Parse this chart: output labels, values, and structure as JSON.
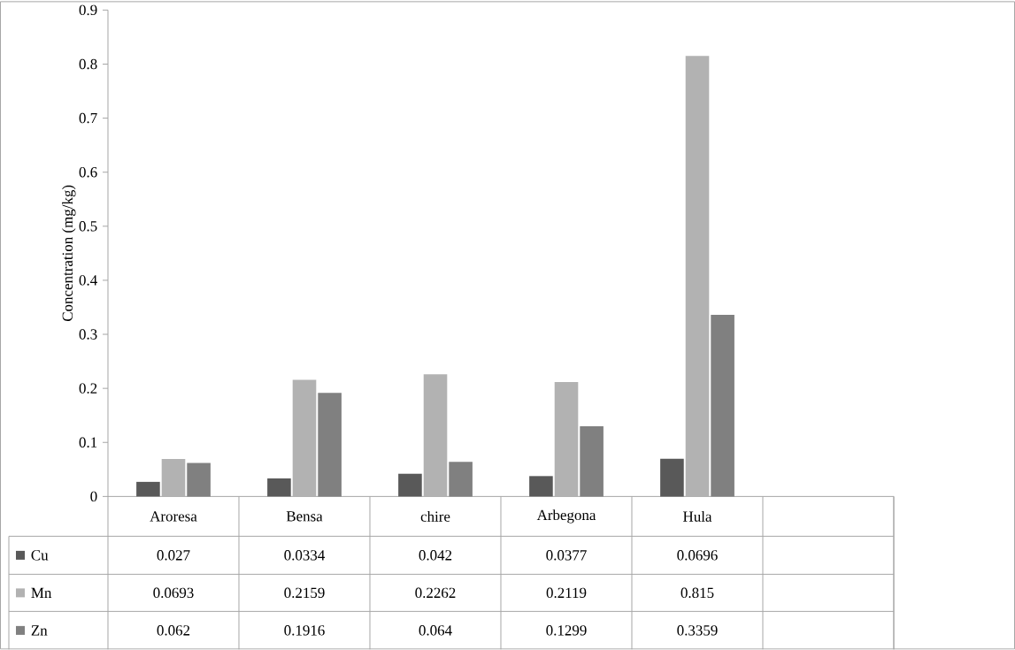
{
  "chart_data": {
    "type": "bar",
    "ylabel": "Concentration (mg/kg)",
    "categories": [
      "Aroresa",
      "Bensa",
      "chire",
      "Arbegona",
      "Hula",
      null
    ],
    "series": [
      {
        "name": "Cu",
        "color": "#595959",
        "values": [
          0.027,
          0.0334,
          0.042,
          0.0377,
          0.0696,
          null
        ]
      },
      {
        "name": "Mn",
        "color": "#b2b2b2",
        "values": [
          0.0693,
          0.2159,
          0.2262,
          0.2119,
          0.815,
          null
        ]
      },
      {
        "name": "Zn",
        "color": "#808080",
        "values": [
          0.062,
          0.1916,
          0.064,
          0.1299,
          0.3359,
          null
        ]
      }
    ],
    "ylim": [
      0,
      0.9
    ],
    "yticks": [
      0,
      0.1,
      0.2,
      0.3,
      0.4,
      0.5,
      0.6,
      0.7,
      0.8,
      0.9
    ],
    "data_labels": true,
    "legend": "bottom left",
    "grid": false
  }
}
